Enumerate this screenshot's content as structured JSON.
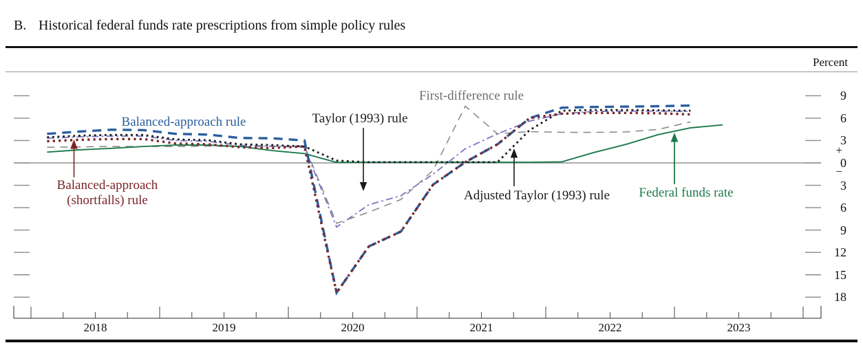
{
  "title": {
    "index": "B.",
    "text": "Historical federal funds rate prescriptions from simple policy rules"
  },
  "axis": {
    "unit_label": "Percent",
    "plus_sign": "+",
    "minus_sign": "−",
    "x_years": [
      "2018",
      "2019",
      "2020",
      "2021",
      "2022",
      "2023"
    ],
    "y_ticks": [
      {
        "value": 9,
        "label": "9"
      },
      {
        "value": 6,
        "label": "6"
      },
      {
        "value": 3,
        "label": "3"
      },
      {
        "value": 0,
        "label": "0"
      },
      {
        "value": -3,
        "label": "3"
      },
      {
        "value": -6,
        "label": "6"
      },
      {
        "value": -9,
        "label": "9"
      },
      {
        "value": -12,
        "label": "12"
      },
      {
        "value": -15,
        "label": "15"
      },
      {
        "value": -18,
        "label": "18"
      }
    ]
  },
  "annotations": {
    "balanced_approach": {
      "label": "Balanced-approach rule",
      "color": "#2b5f9f"
    },
    "shortfalls": {
      "line1": "Balanced-approach",
      "line2": "(shortfalls) rule",
      "color": "#7b2428"
    },
    "taylor": {
      "label": "Taylor (1993) rule",
      "color": "#1a1a1a"
    },
    "first_difference": {
      "label": "First-difference rule",
      "color": "#6e6e6e"
    },
    "adjusted_taylor": {
      "label": "Adjusted Taylor (1993) rule",
      "color": "#1a1a1a"
    },
    "fed_funds": {
      "label": "Federal funds rate",
      "color": "#1d7a4d"
    }
  },
  "chart_data": {
    "type": "line",
    "title": "Historical federal funds rate prescriptions from simple policy rules",
    "ylabel": "Percent",
    "x_note": "quarterly observations, decimal-year quarter midpoints",
    "y_note": "axis labeled in magnitudes with + above zero and − below zero",
    "ylim": [
      -19,
      10
    ],
    "xlim": [
      2018,
      2024
    ],
    "legend_position": "in-plot annotations with arrows",
    "grid": false,
    "series": [
      {
        "id": "first-difference-rule",
        "name": "First-difference rule",
        "color": "#858585",
        "style": "dashed",
        "x": [
          2018.125,
          2018.375,
          2018.625,
          2018.875,
          2019.125,
          2019.375,
          2019.625,
          2019.875,
          2020.125,
          2020.375,
          2020.625,
          2020.875,
          2021.125,
          2021.375,
          2021.625,
          2021.875,
          2022.125,
          2022.375,
          2022.625,
          2022.875,
          2023.125
        ],
        "values": [
          2.1,
          2.15,
          2.2,
          2.2,
          2.2,
          2.25,
          2.2,
          2.2,
          2.3,
          -8.1,
          -6.6,
          -4.9,
          -1.0,
          7.6,
          3.9,
          4.2,
          4.1,
          4.1,
          4.15,
          4.5,
          5.5
        ]
      },
      {
        "id": "taylor-1993-rule",
        "name": "Taylor (1993) rule",
        "color": "#8279c4",
        "style": "dashdot",
        "x": [
          2018.125,
          2018.375,
          2018.625,
          2018.875,
          2019.125,
          2019.375,
          2019.625,
          2019.875,
          2020.125,
          2020.375,
          2020.625,
          2020.875,
          2021.125,
          2021.375,
          2021.625,
          2021.875,
          2022.125,
          2022.375,
          2022.625,
          2022.875,
          2023.125
        ],
        "values": [
          3.3,
          3.5,
          3.6,
          3.6,
          3.0,
          2.9,
          2.35,
          2.25,
          2.1,
          -8.6,
          -5.6,
          -4.4,
          -1.5,
          1.9,
          3.9,
          5.6,
          6.6,
          6.9,
          6.95,
          6.95,
          6.9
        ]
      },
      {
        "id": "federal-funds-rate",
        "name": "Federal funds rate",
        "color": "#1d7a4d",
        "style": "solid",
        "x": [
          2018.125,
          2018.375,
          2018.625,
          2018.875,
          2019.125,
          2019.375,
          2019.625,
          2019.875,
          2020.125,
          2020.375,
          2020.625,
          2020.875,
          2021.125,
          2021.375,
          2021.625,
          2021.875,
          2022.125,
          2022.375,
          2022.625,
          2022.875,
          2023.125,
          2023.375
        ],
        "values": [
          1.45,
          1.75,
          1.95,
          2.2,
          2.4,
          2.4,
          2.2,
          1.65,
          1.25,
          0.06,
          0.08,
          0.08,
          0.08,
          0.08,
          0.08,
          0.08,
          0.15,
          1.4,
          2.5,
          3.8,
          4.7,
          5.1
        ]
      },
      {
        "id": "adjusted-taylor-1993-rule",
        "name": "Adjusted Taylor (1993) rule",
        "color": "#1a1a1a",
        "style": "dotted",
        "x": [
          2018.125,
          2018.375,
          2018.625,
          2018.875,
          2019.125,
          2019.375,
          2019.625,
          2019.875,
          2020.125,
          2020.375,
          2020.625,
          2020.875,
          2021.125,
          2021.375,
          2021.625,
          2021.875,
          2022.125,
          2022.375,
          2022.625,
          2022.875,
          2023.125
        ],
        "values": [
          3.45,
          3.65,
          3.75,
          3.75,
          3.15,
          3.05,
          2.5,
          2.4,
          2.2,
          0.3,
          0.1,
          0.1,
          0.1,
          0.1,
          0.1,
          4.4,
          7.0,
          7.1,
          7.1,
          7.05,
          7.0
        ]
      },
      {
        "id": "balanced-approach-rule",
        "name": "Balanced-approach rule",
        "color": "#2b5f9f",
        "style": "dashed_heavy",
        "x": [
          2018.125,
          2018.375,
          2018.625,
          2018.875,
          2019.125,
          2019.375,
          2019.625,
          2019.875,
          2020.125,
          2020.375,
          2020.625,
          2020.875,
          2021.125,
          2021.375,
          2021.625,
          2021.875,
          2022.125,
          2022.375,
          2022.625,
          2022.875,
          2023.125
        ],
        "values": [
          3.9,
          4.2,
          4.45,
          4.4,
          3.9,
          3.8,
          3.35,
          3.3,
          3.0,
          -17.4,
          -11.2,
          -9.2,
          -2.9,
          0.1,
          2.5,
          6.0,
          7.4,
          7.5,
          7.55,
          7.6,
          7.7
        ]
      },
      {
        "id": "balanced-approach-shortfalls-rule",
        "name": "Balanced-approach (shortfalls) rule",
        "color": "#7b2428",
        "style": "dotted_heavy",
        "x": [
          2018.125,
          2018.375,
          2018.625,
          2018.875,
          2019.125,
          2019.375,
          2019.625,
          2019.875,
          2020.125,
          2020.375,
          2020.625,
          2020.875,
          2021.125,
          2021.375,
          2021.625,
          2021.875,
          2022.125,
          2022.375,
          2022.625,
          2022.875,
          2023.125
        ],
        "values": [
          2.9,
          3.1,
          3.2,
          3.2,
          2.6,
          2.5,
          2.1,
          2.0,
          2.2,
          -17.4,
          -11.2,
          -9.2,
          -2.9,
          0.1,
          2.5,
          6.0,
          6.6,
          6.7,
          6.7,
          6.65,
          6.5
        ]
      }
    ]
  }
}
